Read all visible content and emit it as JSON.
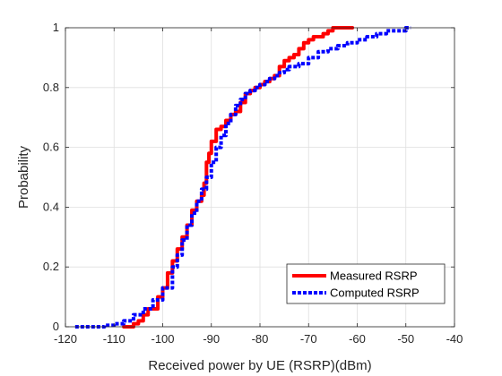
{
  "chart_data": {
    "type": "line",
    "title": "",
    "xlabel": "Received power by UE (RSRP)(dBm)",
    "ylabel": "Probability",
    "xlim": [
      -120,
      -40
    ],
    "ylim": [
      0,
      1
    ],
    "x_ticks": [
      -120,
      -110,
      -100,
      -90,
      -80,
      -70,
      -60,
      -50,
      -40
    ],
    "x_tick_labels": [
      "-120",
      "-110",
      "-100",
      "-90",
      "-80",
      "-70",
      "-60",
      "-50",
      "-40"
    ],
    "y_ticks": [
      0,
      0.2,
      0.4,
      0.6,
      0.8,
      1
    ],
    "y_tick_labels": [
      "0",
      "0.2",
      "0.4",
      "0.6",
      "0.8",
      "1"
    ],
    "grid": true,
    "legend_position": "bottom-right",
    "series": [
      {
        "name": "Measured RSRP",
        "color": "#ff0000",
        "style": "solid",
        "x": [
          -108,
          -106,
          -105,
          -104,
          -103,
          -101,
          -100,
          -99,
          -98,
          -97,
          -96,
          -95,
          -94,
          -93,
          -92,
          -91.5,
          -91,
          -90.5,
          -90,
          -89,
          -88,
          -87,
          -86,
          -85,
          -84,
          -83,
          -82,
          -81,
          -80,
          -79,
          -78,
          -77,
          -76,
          -75,
          -74,
          -73,
          -72,
          -71,
          -70,
          -69,
          -68,
          -67,
          -66,
          -65,
          -64,
          -63,
          -62,
          -61
        ],
        "values": [
          0.0,
          0.01,
          0.02,
          0.04,
          0.06,
          0.1,
          0.13,
          0.18,
          0.22,
          0.26,
          0.3,
          0.34,
          0.39,
          0.42,
          0.44,
          0.48,
          0.55,
          0.58,
          0.62,
          0.66,
          0.67,
          0.69,
          0.71,
          0.72,
          0.75,
          0.78,
          0.79,
          0.8,
          0.81,
          0.82,
          0.83,
          0.84,
          0.87,
          0.89,
          0.9,
          0.91,
          0.93,
          0.95,
          0.96,
          0.97,
          0.97,
          0.98,
          0.99,
          1.0,
          1.0,
          1.0,
          1.0,
          1.0
        ]
      },
      {
        "name": "Computed RSRP",
        "color": "#0000ff",
        "style": "dotted",
        "x": [
          -118,
          -112,
          -110,
          -108,
          -106,
          -104,
          -102,
          -100,
          -98,
          -97,
          -96,
          -95,
          -94,
          -93,
          -92,
          -91,
          -90,
          -89,
          -88,
          -87,
          -86,
          -85,
          -84,
          -83,
          -82,
          -81,
          -80,
          -79,
          -78,
          -77,
          -76,
          -75,
          -74,
          -72,
          -70,
          -68,
          -66,
          -64,
          -62,
          -60,
          -58,
          -56,
          -54,
          -52,
          -50,
          -49
        ],
        "values": [
          0.0,
          0.005,
          0.01,
          0.02,
          0.04,
          0.06,
          0.09,
          0.13,
          0.2,
          0.24,
          0.29,
          0.34,
          0.38,
          0.42,
          0.46,
          0.5,
          0.55,
          0.6,
          0.64,
          0.68,
          0.71,
          0.74,
          0.76,
          0.78,
          0.79,
          0.8,
          0.81,
          0.82,
          0.83,
          0.84,
          0.85,
          0.86,
          0.87,
          0.88,
          0.9,
          0.92,
          0.93,
          0.94,
          0.95,
          0.96,
          0.97,
          0.98,
          0.99,
          0.99,
          1.0,
          1.0
        ]
      }
    ]
  }
}
